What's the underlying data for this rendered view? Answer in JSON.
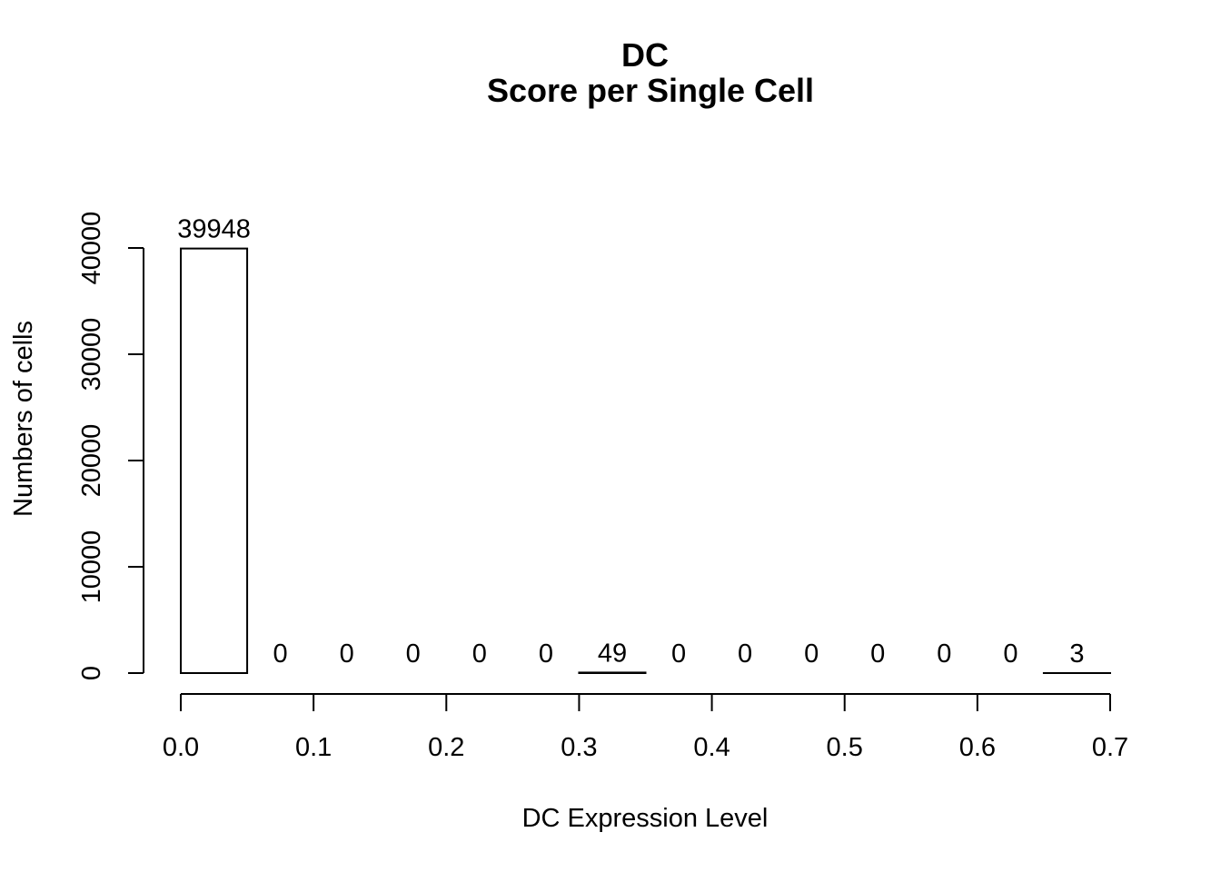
{
  "chart_data": {
    "type": "bar",
    "title": "DC",
    "subtitle": "Score per Single Cell",
    "xlabel": "DC Expression Level",
    "ylabel": "Numbers of cells",
    "bin_edges": [
      0.0,
      0.05,
      0.1,
      0.15,
      0.2,
      0.25,
      0.3,
      0.35,
      0.4,
      0.45,
      0.5,
      0.55,
      0.6,
      0.65,
      0.7
    ],
    "values": [
      39948,
      0,
      0,
      0,
      0,
      0,
      49,
      0,
      0,
      0,
      0,
      0,
      0,
      3
    ],
    "value_labels": [
      "39948",
      "0",
      "0",
      "0",
      "0",
      "0",
      "49",
      "0",
      "0",
      "0",
      "0",
      "0",
      "0",
      "3"
    ],
    "xlim": [
      0.0,
      0.7
    ],
    "ylim": [
      0,
      40000
    ],
    "x_ticks": [
      0.0,
      0.1,
      0.2,
      0.3,
      0.4,
      0.5,
      0.6,
      0.7
    ],
    "x_tick_labels": [
      "0.0",
      "0.1",
      "0.2",
      "0.3",
      "0.4",
      "0.5",
      "0.6",
      "0.7"
    ],
    "y_ticks": [
      0,
      10000,
      20000,
      30000,
      40000
    ],
    "y_tick_labels": [
      "0",
      "10000",
      "20000",
      "30000",
      "40000"
    ],
    "grid": false,
    "legend": "none",
    "bar_fill": "#ffffff",
    "bar_stroke": "#000000"
  }
}
